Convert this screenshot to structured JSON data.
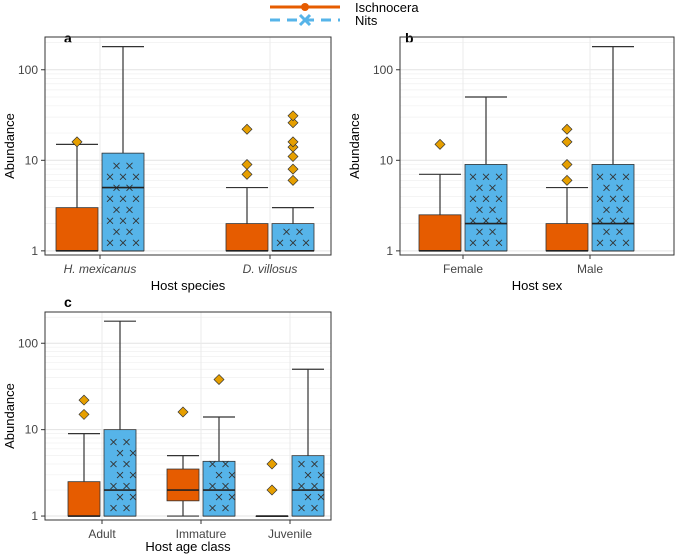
{
  "colors": {
    "ischnocera": "#E65C00",
    "nits": "#56B4E9",
    "outlier": "#E69F00",
    "grid": "#ebebeb",
    "panel_border": "#333333"
  },
  "legend": {
    "entries": [
      {
        "name": "Ischnocera",
        "style": "line-dot"
      },
      {
        "name": "Nits",
        "style": "dash-cross"
      }
    ]
  },
  "chart_data": [
    {
      "panel": "a",
      "type": "box",
      "xlabel": "Host species",
      "ylabel": "Abundance",
      "yscale": "log10",
      "ylim": [
        0.9,
        230
      ],
      "yticks": [
        1,
        10,
        100
      ],
      "ytick_labels": [
        "1",
        "10",
        "100"
      ],
      "categories": [
        "H. mexicanus",
        "D. villosus"
      ],
      "italic_categories": true,
      "series": [
        {
          "name": "Ischnocera",
          "boxes": [
            {
              "min": 1,
              "q1": 1,
              "median": 1,
              "q3": 3,
              "max": 15,
              "outliers": [
                16
              ]
            },
            {
              "min": 1,
              "q1": 1,
              "median": 1,
              "q3": 2,
              "max": 5,
              "outliers": [
                7,
                9,
                22
              ]
            }
          ]
        },
        {
          "name": "Nits",
          "boxes": [
            {
              "min": 1,
              "q1": 1,
              "median": 5,
              "q3": 12,
              "max": 180,
              "outliers": []
            },
            {
              "min": 1,
              "q1": 1,
              "median": 1,
              "q3": 2,
              "max": 3,
              "outliers": [
                6,
                8,
                11,
                14,
                16,
                26,
                31
              ]
            }
          ]
        }
      ]
    },
    {
      "panel": "b",
      "type": "box",
      "xlabel": "Host sex",
      "ylabel": "Abundance",
      "yscale": "log10",
      "ylim": [
        0.9,
        230
      ],
      "yticks": [
        1,
        10,
        100
      ],
      "ytick_labels": [
        "1",
        "10",
        "100"
      ],
      "categories": [
        "Female",
        "Male"
      ],
      "italic_categories": false,
      "series": [
        {
          "name": "Ischnocera",
          "boxes": [
            {
              "min": 1,
              "q1": 1,
              "median": 1,
              "q3": 2.5,
              "max": 7,
              "outliers": [
                15
              ]
            },
            {
              "min": 1,
              "q1": 1,
              "median": 1,
              "q3": 2,
              "max": 5,
              "outliers": [
                6,
                9,
                16,
                22
              ]
            }
          ]
        },
        {
          "name": "Nits",
          "boxes": [
            {
              "min": 1,
              "q1": 1,
              "median": 2,
              "q3": 9,
              "max": 50,
              "outliers": []
            },
            {
              "min": 1,
              "q1": 1,
              "median": 2,
              "q3": 9,
              "max": 180,
              "outliers": []
            }
          ]
        }
      ]
    },
    {
      "panel": "c",
      "type": "box",
      "xlabel": "Host age class",
      "ylabel": "Abundance",
      "yscale": "log10",
      "ylim": [
        0.9,
        230
      ],
      "yticks": [
        1,
        10,
        100
      ],
      "ytick_labels": [
        "1",
        "10",
        "100"
      ],
      "categories": [
        "Adult",
        "Immature",
        "Juvenile"
      ],
      "italic_categories": false,
      "series": [
        {
          "name": "Ischnocera",
          "boxes": [
            {
              "min": 1,
              "q1": 1,
              "median": 1,
              "q3": 2.5,
              "max": 9,
              "outliers": [
                15,
                22
              ]
            },
            {
              "min": 1,
              "q1": 1.5,
              "median": 2,
              "q3": 3.5,
              "max": 5,
              "outliers": [
                16
              ]
            },
            {
              "min": 1,
              "q1": 1,
              "median": 1,
              "q3": 1,
              "max": 1,
              "outliers": [
                2,
                4
              ]
            }
          ]
        },
        {
          "name": "Nits",
          "boxes": [
            {
              "min": 1,
              "q1": 1,
              "median": 2,
              "q3": 10,
              "max": 180,
              "outliers": []
            },
            {
              "min": 1,
              "q1": 1,
              "median": 2,
              "q3": 4.3,
              "max": 14,
              "outliers": [
                38
              ]
            },
            {
              "min": 1,
              "q1": 1,
              "median": 2,
              "q3": 5,
              "max": 50,
              "outliers": []
            }
          ]
        }
      ]
    }
  ]
}
